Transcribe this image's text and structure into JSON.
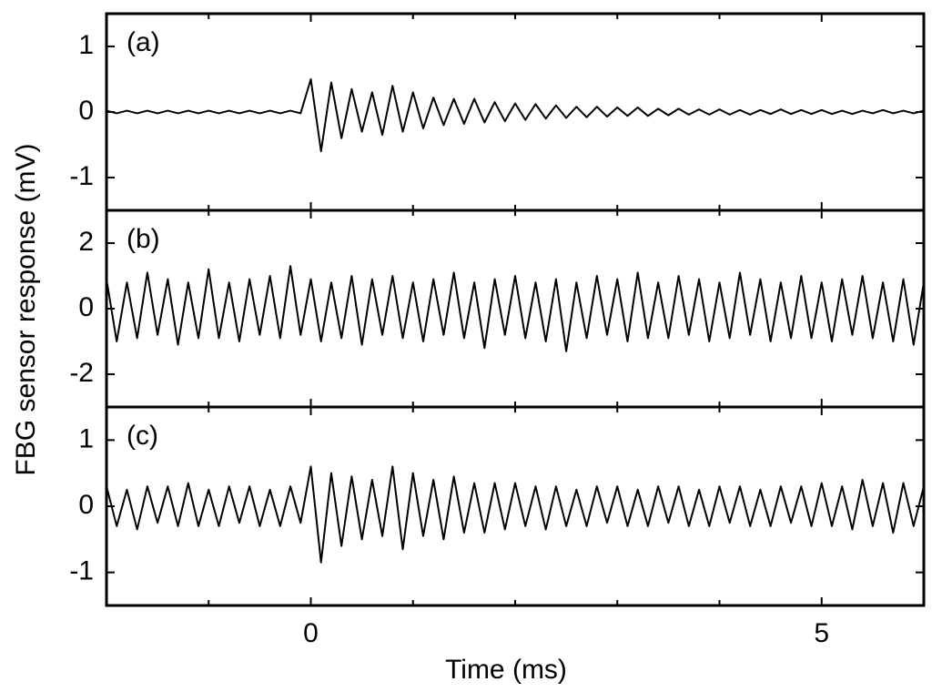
{
  "chart_data": [
    {
      "type": "line",
      "label": "(a)",
      "color": "#000000",
      "x": [
        -2,
        -1.9,
        -1.8,
        -1.7,
        -1.6,
        -1.5,
        -1.4,
        -1.3,
        -1.2,
        -1.1,
        -1,
        -0.9,
        -0.8,
        -0.7,
        -0.6,
        -0.5,
        -0.4,
        -0.3,
        -0.2,
        -0.1,
        0,
        0.1,
        0.2,
        0.3,
        0.4,
        0.5,
        0.6,
        0.7,
        0.8,
        0.9,
        1,
        1.1,
        1.2,
        1.3,
        1.4,
        1.5,
        1.6,
        1.7,
        1.8,
        1.9,
        2,
        2.1,
        2.2,
        2.3,
        2.4,
        2.5,
        2.6,
        2.7,
        2.8,
        2.9,
        3,
        3.1,
        3.2,
        3.3,
        3.4,
        3.5,
        3.6,
        3.7,
        3.8,
        3.9,
        4,
        4.1,
        4.2,
        4.3,
        4.4,
        4.5,
        4.6,
        4.7,
        4.8,
        4.9,
        5,
        5.1,
        5.2,
        5.3,
        5.4,
        5.5,
        5.6,
        5.7,
        5.8,
        5.9,
        6
      ],
      "values": [
        0.02,
        -0.02,
        0.02,
        -0.02,
        0.02,
        -0.02,
        0.02,
        -0.02,
        0.02,
        -0.02,
        0.02,
        -0.02,
        0.02,
        -0.02,
        0.02,
        -0.02,
        0.02,
        -0.02,
        0.02,
        -0.02,
        0.5,
        -0.6,
        0.45,
        -0.4,
        0.35,
        -0.3,
        0.3,
        -0.35,
        0.4,
        -0.3,
        0.3,
        -0.25,
        0.22,
        -0.2,
        0.2,
        -0.18,
        0.2,
        -0.16,
        0.15,
        -0.14,
        0.13,
        -0.12,
        0.12,
        -0.1,
        0.1,
        -0.09,
        0.08,
        -0.08,
        0.08,
        -0.07,
        0.07,
        -0.06,
        0.07,
        -0.06,
        0.05,
        -0.05,
        0.05,
        -0.04,
        0.04,
        -0.04,
        0.04,
        -0.04,
        0.03,
        -0.04,
        0.03,
        -0.03,
        0.04,
        -0.03,
        0.03,
        -0.03,
        0.03,
        -0.03,
        0.02,
        -0.03,
        0.02,
        -0.02,
        0.03,
        -0.02,
        0.02,
        -0.02,
        0.02
      ],
      "xlim": [
        -2,
        6
      ],
      "xticks": [
        0,
        5
      ],
      "xminor": [
        -1,
        1,
        2,
        3,
        4
      ],
      "ylim": [
        -1.5,
        1.5
      ],
      "yticks": [
        -1,
        0,
        1
      ]
    },
    {
      "type": "line",
      "label": "(b)",
      "color": "#000000",
      "ylabel": "FBG sensor response (mV)",
      "x": [
        -2,
        -1.9,
        -1.8,
        -1.7,
        -1.6,
        -1.5,
        -1.4,
        -1.3,
        -1.2,
        -1.1,
        -1,
        -0.9,
        -0.8,
        -0.7,
        -0.6,
        -0.5,
        -0.4,
        -0.3,
        -0.2,
        -0.1,
        0,
        0.1,
        0.2,
        0.3,
        0.4,
        0.5,
        0.6,
        0.7,
        0.8,
        0.9,
        1,
        1.1,
        1.2,
        1.3,
        1.4,
        1.5,
        1.6,
        1.7,
        1.8,
        1.9,
        2,
        2.1,
        2.2,
        2.3,
        2.4,
        2.5,
        2.6,
        2.7,
        2.8,
        2.9,
        3,
        3.1,
        3.2,
        3.3,
        3.4,
        3.5,
        3.6,
        3.7,
        3.8,
        3.9,
        4,
        4.1,
        4.2,
        4.3,
        4.4,
        4.5,
        4.6,
        4.7,
        4.8,
        4.9,
        5,
        5.1,
        5.2,
        5.3,
        5.4,
        5.5,
        5.6,
        5.7,
        5.8,
        5.9,
        6
      ],
      "values": [
        0.9,
        -1.0,
        0.8,
        -0.9,
        1.1,
        -0.8,
        0.9,
        -1.1,
        0.8,
        -0.9,
        1.2,
        -0.9,
        0.8,
        -1.0,
        0.9,
        -0.8,
        1.0,
        -0.9,
        1.3,
        -0.8,
        0.9,
        -1.0,
        0.8,
        -0.9,
        1.0,
        -1.1,
        0.9,
        -0.8,
        1.0,
        -0.9,
        0.8,
        -1.0,
        0.9,
        -0.8,
        1.1,
        -0.9,
        0.8,
        -1.2,
        0.9,
        -0.8,
        1.0,
        -0.9,
        0.8,
        -1.0,
        0.9,
        -1.3,
        0.8,
        -0.9,
        1.0,
        -0.8,
        0.9,
        -1.0,
        1.1,
        -0.9,
        0.8,
        -0.9,
        1.0,
        -0.8,
        0.9,
        -1.0,
        0.8,
        -0.9,
        1.1,
        -0.8,
        0.9,
        -1.0,
        0.8,
        -0.9,
        1.0,
        -0.9,
        0.8,
        -1.0,
        0.9,
        -0.8,
        1.0,
        -0.9,
        0.8,
        -1.0,
        0.9,
        -1.1,
        0.8
      ],
      "xlim": [
        -2,
        6
      ],
      "xticks": [
        0,
        5
      ],
      "xminor": [
        -1,
        1,
        2,
        3,
        4
      ],
      "ylim": [
        -3,
        3
      ],
      "yticks": [
        -2,
        0,
        2
      ]
    },
    {
      "type": "line",
      "label": "(c)",
      "color": "#000000",
      "xlabel": "Time (ms)",
      "x": [
        -2,
        -1.9,
        -1.8,
        -1.7,
        -1.6,
        -1.5,
        -1.4,
        -1.3,
        -1.2,
        -1.1,
        -1,
        -0.9,
        -0.8,
        -0.7,
        -0.6,
        -0.5,
        -0.4,
        -0.3,
        -0.2,
        -0.1,
        0,
        0.1,
        0.2,
        0.3,
        0.4,
        0.5,
        0.6,
        0.7,
        0.8,
        0.9,
        1,
        1.1,
        1.2,
        1.3,
        1.4,
        1.5,
        1.6,
        1.7,
        1.8,
        1.9,
        2,
        2.1,
        2.2,
        2.3,
        2.4,
        2.5,
        2.6,
        2.7,
        2.8,
        2.9,
        3,
        3.1,
        3.2,
        3.3,
        3.4,
        3.5,
        3.6,
        3.7,
        3.8,
        3.9,
        4,
        4.1,
        4.2,
        4.3,
        4.4,
        4.5,
        4.6,
        4.7,
        4.8,
        4.9,
        5,
        5.1,
        5.2,
        5.3,
        5.4,
        5.5,
        5.6,
        5.7,
        5.8,
        5.9,
        6
      ],
      "values": [
        0.3,
        -0.3,
        0.25,
        -0.35,
        0.3,
        -0.25,
        0.3,
        -0.3,
        0.35,
        -0.3,
        0.25,
        -0.3,
        0.3,
        -0.25,
        0.3,
        -0.3,
        0.25,
        -0.3,
        0.3,
        -0.25,
        0.6,
        -0.85,
        0.5,
        -0.6,
        0.45,
        -0.5,
        0.4,
        -0.45,
        0.6,
        -0.65,
        0.5,
        -0.45,
        0.4,
        -0.5,
        0.45,
        -0.4,
        0.35,
        -0.4,
        0.35,
        -0.35,
        0.35,
        -0.3,
        0.3,
        -0.35,
        0.3,
        -0.3,
        0.25,
        -0.3,
        0.3,
        -0.25,
        0.3,
        -0.3,
        0.25,
        -0.3,
        0.3,
        -0.25,
        0.3,
        -0.3,
        0.25,
        -0.3,
        0.3,
        -0.25,
        0.3,
        -0.3,
        0.25,
        -0.3,
        0.3,
        -0.25,
        0.3,
        -0.3,
        0.35,
        -0.3,
        0.3,
        -0.35,
        0.4,
        -0.3,
        0.35,
        -0.4,
        0.35,
        -0.3,
        0.3
      ],
      "xlim": [
        -2,
        6
      ],
      "xticks": [
        0,
        5
      ],
      "xminor": [
        -1,
        1,
        2,
        3,
        4
      ],
      "ylim": [
        -1.5,
        1.5
      ],
      "yticks": [
        -1,
        0,
        1
      ]
    }
  ]
}
